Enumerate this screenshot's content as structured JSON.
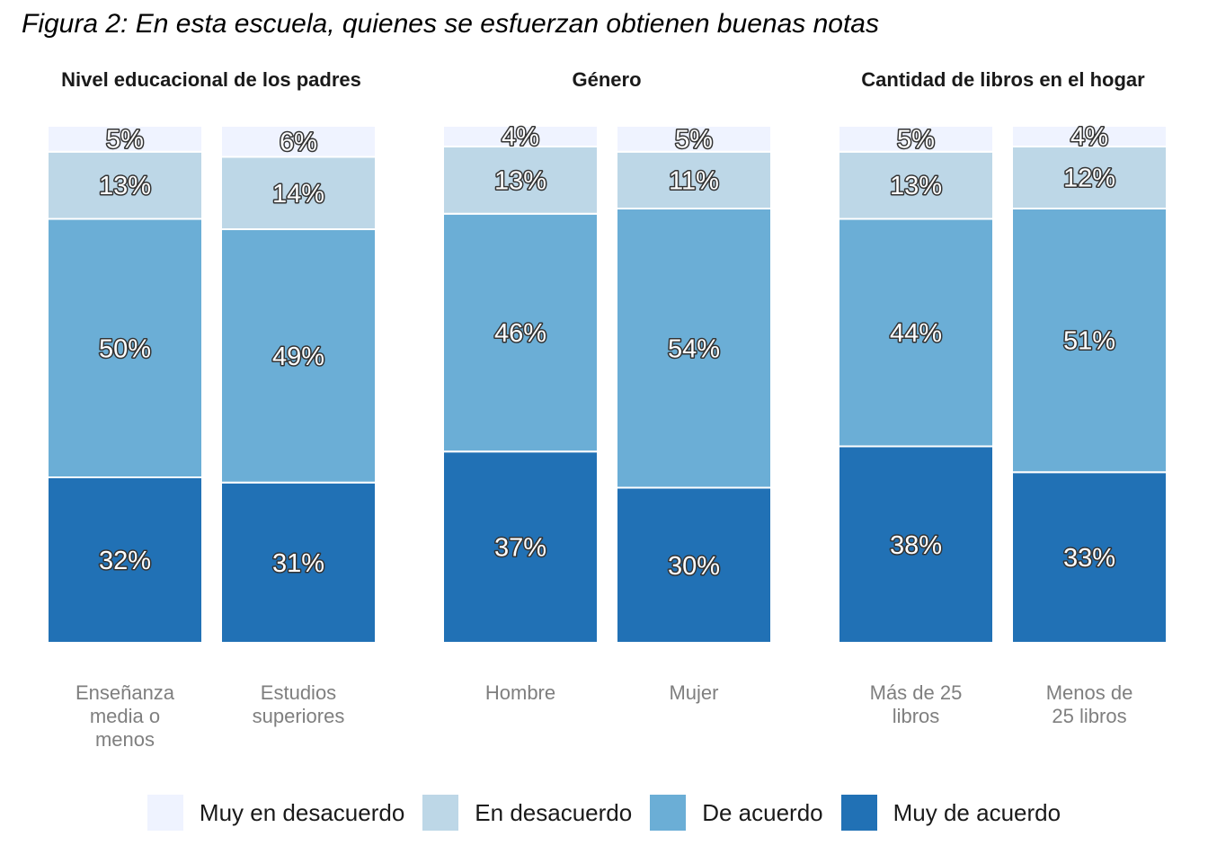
{
  "chart_data": {
    "type": "bar",
    "stacked": true,
    "normalized": true,
    "title": "Figura 2: En esta escuela, quienes se esfuerzan obtienen buenas notas",
    "facets": [
      {
        "label": "Nivel educacional de los padres",
        "categories": [
          "Enseñanza media o menos",
          "Estudios superiores"
        ]
      },
      {
        "label": "Género",
        "categories": [
          "Hombre",
          "Mujer"
        ]
      },
      {
        "label": "Cantidad de libros en el hogar",
        "categories": [
          "Más de 25 libros",
          "Menos de 25 libros"
        ]
      }
    ],
    "category_display": [
      [
        "Enseñanza",
        "media o",
        "menos"
      ],
      [
        "Estudios",
        "superiores"
      ],
      [
        "Hombre"
      ],
      [
        "Mujer"
      ],
      [
        "Más de 25",
        "libros"
      ],
      [
        "Menos de",
        "25 libros"
      ]
    ],
    "series": [
      {
        "name": "Muy de acuerdo",
        "color": "#2171b5",
        "values": [
          32,
          31,
          37,
          30,
          38,
          33
        ],
        "labels": [
          "32%",
          "31%",
          "37%",
          "30%",
          "38%",
          "33%"
        ]
      },
      {
        "name": "De acuerdo",
        "color": "#6baed6",
        "values": [
          50,
          49,
          46,
          54,
          44,
          51
        ],
        "labels": [
          "50%",
          "49%",
          "46%",
          "54%",
          "44%",
          "51%"
        ]
      },
      {
        "name": "En desacuerdo",
        "color": "#bdd7e7",
        "values": [
          13,
          14,
          13,
          11,
          13,
          12
        ],
        "labels": [
          "13%",
          "14%",
          "13%",
          "11%",
          "13%",
          "12%"
        ]
      },
      {
        "name": "Muy en desacuerdo",
        "color": "#eff3ff",
        "values": [
          5,
          6,
          4,
          5,
          5,
          4
        ],
        "labels": [
          "5%",
          "6%",
          "4%",
          "5%",
          "5%",
          "4%"
        ]
      }
    ],
    "legend_order": [
      "Muy en desacuerdo",
      "En desacuerdo",
      "De acuerdo",
      "Muy de acuerdo"
    ],
    "ylim": [
      0,
      100
    ],
    "grid": false,
    "legend_position": "bottom"
  }
}
